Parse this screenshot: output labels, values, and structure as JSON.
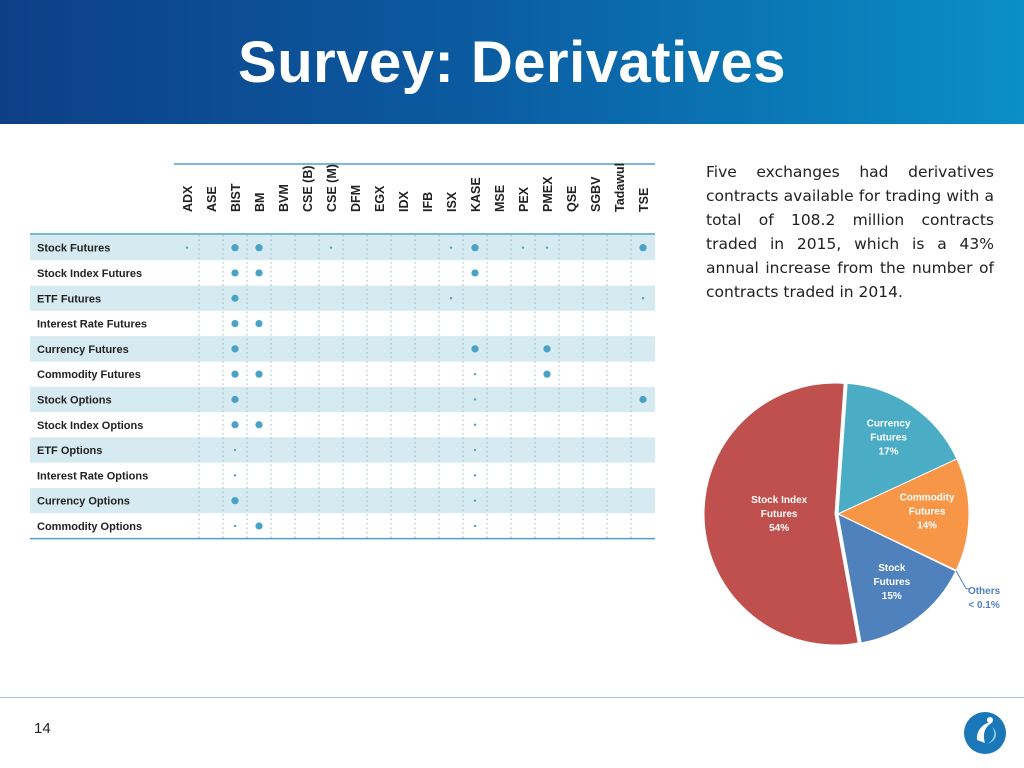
{
  "slide": {
    "title": "Survey: Derivatives",
    "page_number": "14",
    "intro": "Five exchanges had derivatives contracts available for trading with a total of 108.2 million contracts traded in 2015, which is a 43% annual increase from the number of contracts traded in 2014."
  },
  "colors": {
    "header_dark": "#0d3f86",
    "header_light": "#0a8fc6",
    "row_stripe": "#d6eaf2",
    "dot": "#4aa3c4",
    "pie_stock_index_futures": "#c0504d",
    "pie_currency_futures": "#4bacc6",
    "pie_commodity_futures": "#f79646",
    "pie_stock_futures": "#4f81bd",
    "pie_others": "#404040"
  },
  "chart_data": [
    {
      "type": "table",
      "columns": [
        "ADX",
        "ASE",
        "BIST",
        "BM",
        "BVM",
        "CSE (B)",
        "CSE (M)",
        "DFM",
        "EGX",
        "IDX",
        "IFB",
        "ISX",
        "KASE",
        "MSE",
        "PEX",
        "PMEX",
        "QSE",
        "SGBV",
        "Tadawul",
        "TSE"
      ],
      "rows": [
        {
          "label": "Stock Futures",
          "large": [
            2,
            3,
            12,
            19
          ],
          "small": [
            0,
            6,
            11,
            14,
            15
          ]
        },
        {
          "label": "Stock Index Futures",
          "large": [
            2,
            3,
            12
          ],
          "small": []
        },
        {
          "label": "ETF Futures",
          "large": [
            2
          ],
          "small": [
            11,
            19
          ]
        },
        {
          "label": "Interest Rate Futures",
          "large": [
            2,
            3
          ],
          "small": []
        },
        {
          "label": "Currency Futures",
          "large": [
            2,
            12,
            15
          ],
          "small": []
        },
        {
          "label": "Commodity Futures",
          "large": [
            2,
            3,
            15
          ],
          "small": [
            12
          ]
        },
        {
          "label": "Stock Options",
          "large": [
            2,
            19
          ],
          "small": [
            12
          ]
        },
        {
          "label": "Stock Index Options",
          "large": [
            2,
            3
          ],
          "small": [
            12
          ]
        },
        {
          "label": "ETF Options",
          "large": [],
          "small": [
            2,
            12
          ]
        },
        {
          "label": "Interest Rate Options",
          "large": [],
          "small": [
            2,
            12
          ]
        },
        {
          "label": "Currency Options",
          "large": [
            2
          ],
          "small": [
            12
          ]
        },
        {
          "label": "Commodity Options",
          "large": [
            3
          ],
          "small": [
            2,
            12
          ]
        }
      ]
    },
    {
      "type": "pie",
      "slices": [
        {
          "name": "Stock Index Futures",
          "value": 54,
          "label": "Stock Index Futures 54%"
        },
        {
          "name": "Currency Futures",
          "value": 17,
          "label": "Currency Futures 17%"
        },
        {
          "name": "Commodity Futures",
          "value": 14,
          "label": "Commodity Futures 14%"
        },
        {
          "name": "Others",
          "value": 0.1,
          "label": "Others < 0.1%"
        },
        {
          "name": "Stock Futures",
          "value": 15,
          "label": "Stock Futures 15%"
        }
      ]
    }
  ]
}
